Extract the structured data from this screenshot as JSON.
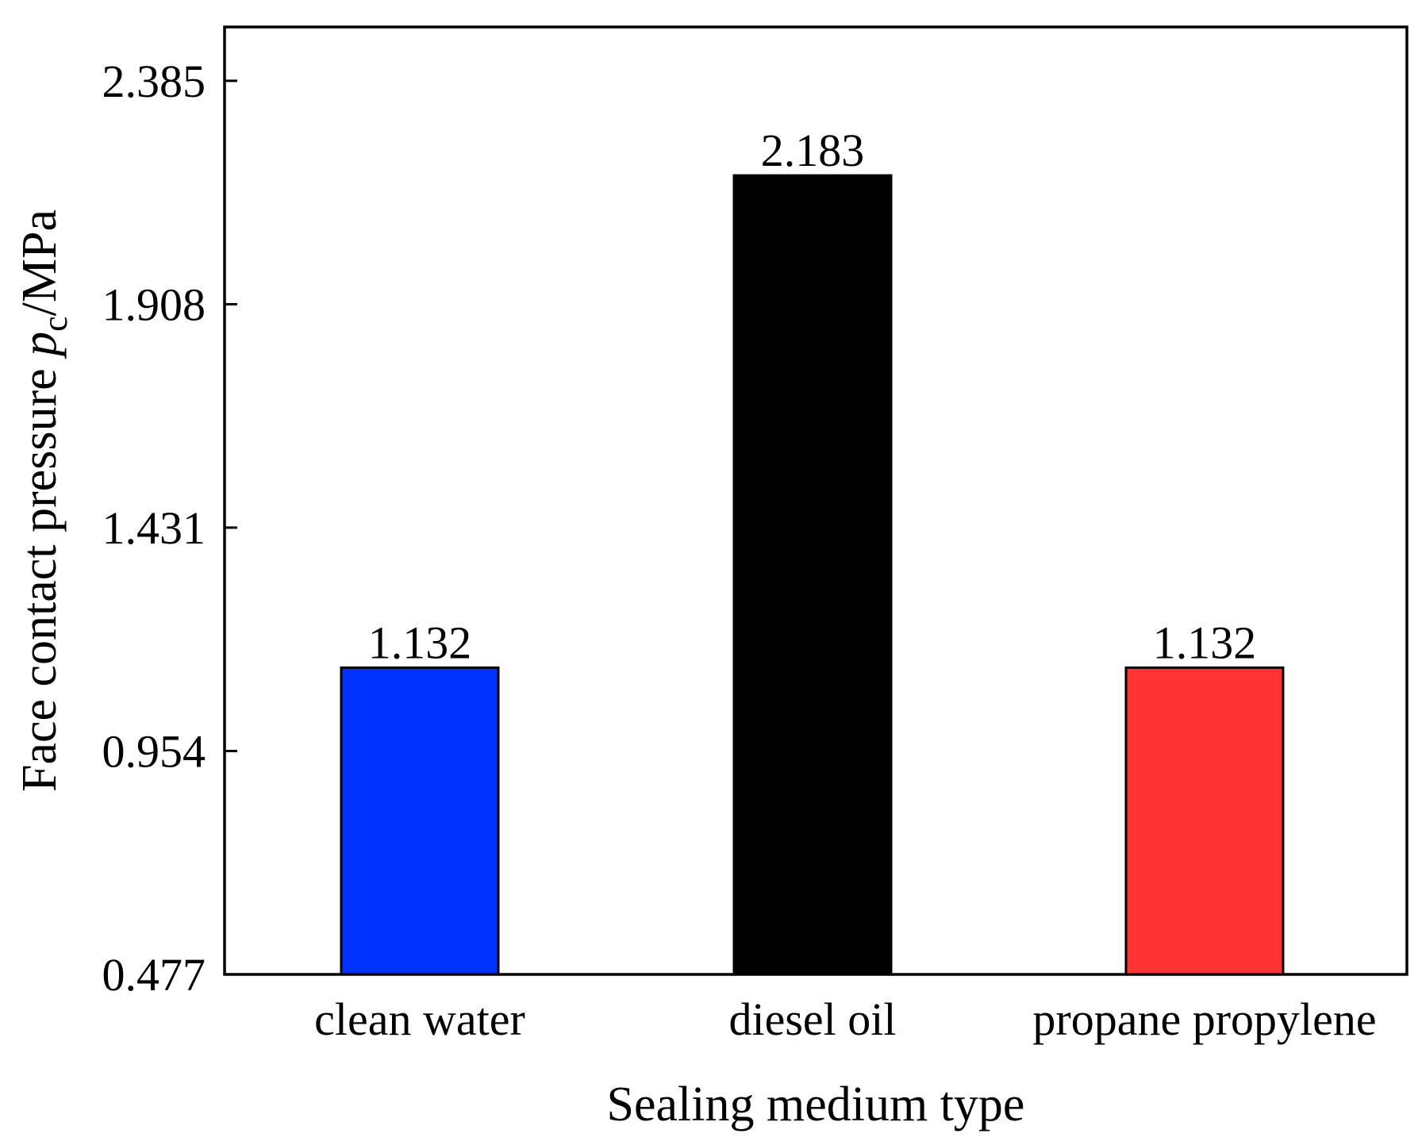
{
  "chart_data": {
    "type": "bar",
    "title": "",
    "xlabel": "Sealing medium type",
    "ylabel": {
      "main": "Face contact pressure ",
      "symbol": "p",
      "subscript": "c",
      "unit": "/MPa"
    },
    "categories": [
      "clean water",
      "diesel oil",
      "propane propylene"
    ],
    "values": [
      1.132,
      2.183,
      1.132
    ],
    "value_labels": [
      "1.132",
      "2.183",
      "1.132"
    ],
    "colors": [
      "#0033ff",
      "#000000",
      "#ff3333"
    ],
    "ylim": [
      0.477,
      2.5
    ],
    "yticks": [
      0.477,
      0.954,
      1.431,
      1.908,
      2.385
    ],
    "ytick_labels": [
      "0.477",
      "0.954",
      "1.431",
      "1.908",
      "2.385"
    ],
    "grid": false,
    "legend": "none"
  }
}
